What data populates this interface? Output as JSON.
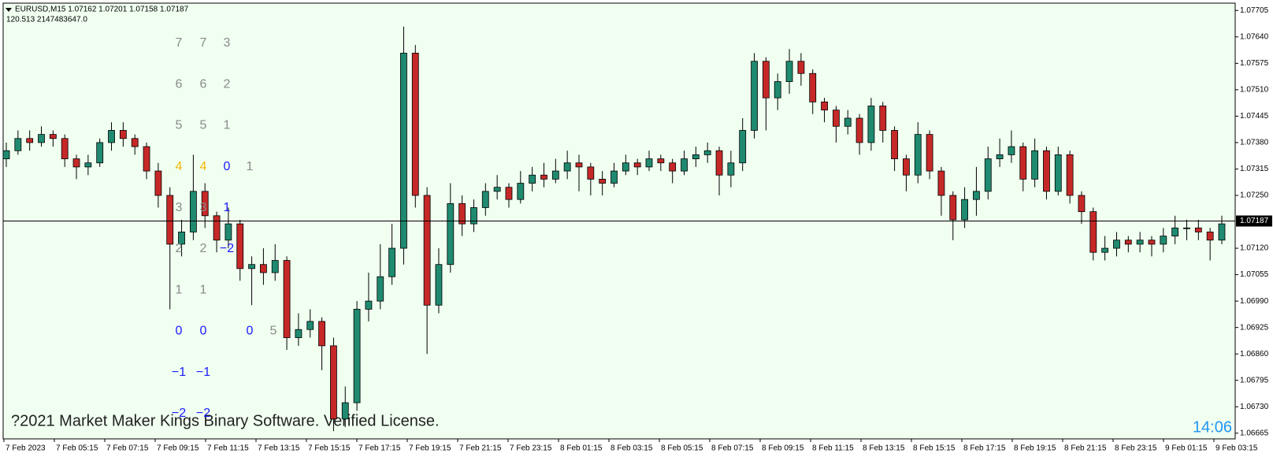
{
  "chart_data": {
    "type": "candlestick",
    "symbol_line": "EURUSD,M15  1.07162 1.07201 1.07158 1.07187",
    "info_line": "120.513  2147483647.0",
    "open": [
      1.0734,
      1.0736,
      1.0739,
      1.0738,
      1.074,
      1.0739,
      1.0734,
      1.0732,
      1.0733,
      1.0738,
      1.0741,
      1.0739,
      1.0737,
      1.0731,
      1.0725,
      1.0713,
      1.0716,
      1.0726,
      1.072,
      1.0714,
      1.0718,
      1.0707,
      1.0708,
      1.0706,
      1.0709,
      1.069,
      1.0692,
      1.0694,
      1.0688,
      1.067,
      1.0674,
      1.0697,
      1.0699,
      1.0705,
      1.0712,
      1.076,
      1.0725,
      1.0698,
      1.0708,
      1.0723,
      1.0718,
      1.0722,
      1.0726,
      1.0727,
      1.0724,
      1.0728,
      1.073,
      1.0729,
      1.0731,
      1.0733,
      1.0732,
      1.0729,
      1.0728,
      1.0731,
      1.0733,
      1.0732,
      1.0734,
      1.0733,
      1.0731,
      1.0734,
      1.0735,
      1.0736,
      1.073,
      1.0733,
      1.0741,
      1.0758,
      1.0749,
      1.0753,
      1.0758,
      1.0755,
      1.0748,
      1.0746,
      1.0742,
      1.0744,
      1.0738,
      1.0747,
      1.0741,
      1.0734,
      1.073,
      1.074,
      1.0731,
      1.0725,
      1.0719,
      1.0724,
      1.0726,
      1.0734,
      1.0735,
      1.0737,
      1.0729,
      1.0736,
      1.0726,
      1.0735,
      1.0725,
      1.0721,
      1.0711,
      1.0712,
      1.0714,
      1.0713,
      1.0714,
      1.0713,
      1.0715,
      1.0717,
      1.0717,
      1.0716,
      1.0714
    ],
    "high": [
      1.0738,
      1.0741,
      1.0741,
      1.0742,
      1.0741,
      1.074,
      1.0735,
      1.0735,
      1.0739,
      1.0743,
      1.0743,
      1.074,
      1.0738,
      1.0733,
      1.0727,
      1.0719,
      1.0735,
      1.0728,
      1.0721,
      1.0722,
      1.0719,
      1.071,
      1.0712,
      1.0713,
      1.071,
      1.0696,
      1.0697,
      1.0695,
      1.069,
      1.0678,
      1.0699,
      1.0706,
      1.0713,
      1.0718,
      1.07665,
      1.0762,
      1.0727,
      1.0712,
      1.0728,
      1.0725,
      1.0724,
      1.0728,
      1.073,
      1.0728,
      1.0731,
      1.0732,
      1.0733,
      1.0734,
      1.0736,
      1.0735,
      1.0733,
      1.0731,
      1.0733,
      1.0735,
      1.0734,
      1.0736,
      1.0735,
      1.0734,
      1.0736,
      1.0737,
      1.0738,
      1.0737,
      1.0736,
      1.0744,
      1.076,
      1.0759,
      1.0755,
      1.0761,
      1.076,
      1.0756,
      1.0749,
      1.0747,
      1.0746,
      1.0745,
      1.0749,
      1.0748,
      1.0742,
      1.0735,
      1.0743,
      1.0741,
      1.0732,
      1.0726,
      1.0727,
      1.0732,
      1.0737,
      1.0739,
      1.0741,
      1.0738,
      1.0739,
      1.0737,
      1.0737,
      1.0736,
      1.0726,
      1.0722,
      1.0715,
      1.0716,
      1.0715,
      1.0716,
      1.0715,
      1.0717,
      1.072,
      1.0719,
      1.0719,
      1.0717,
      1.072
    ],
    "low": [
      1.0732,
      1.0735,
      1.0736,
      1.0737,
      1.0737,
      1.0732,
      1.0729,
      1.073,
      1.0732,
      1.0736,
      1.0737,
      1.0735,
      1.0729,
      1.0722,
      1.0697,
      1.071,
      1.0714,
      1.0717,
      1.0711,
      1.0712,
      1.0704,
      1.0698,
      1.0703,
      1.0704,
      1.0687,
      1.0688,
      1.069,
      1.0682,
      1.0667,
      1.0668,
      1.0672,
      1.0694,
      1.0697,
      1.0703,
      1.0708,
      1.0722,
      1.0686,
      1.0696,
      1.0706,
      1.0715,
      1.0716,
      1.072,
      1.0724,
      1.0722,
      1.0723,
      1.0726,
      1.0727,
      1.0728,
      1.0729,
      1.0726,
      1.0725,
      1.0725,
      1.0727,
      1.073,
      1.073,
      1.0731,
      1.0731,
      1.0728,
      1.073,
      1.0732,
      1.0733,
      1.0725,
      1.0727,
      1.0731,
      1.0739,
      1.0741,
      1.0746,
      1.075,
      1.0752,
      1.0745,
      1.0743,
      1.0738,
      1.074,
      1.0735,
      1.0736,
      1.0738,
      1.0731,
      1.0726,
      1.0728,
      1.0729,
      1.072,
      1.0714,
      1.0717,
      1.072,
      1.0724,
      1.0732,
      1.0733,
      1.0726,
      1.0727,
      1.0724,
      1.0725,
      1.0723,
      1.0718,
      1.0709,
      1.0709,
      1.071,
      1.0711,
      1.0711,
      1.071,
      1.0711,
      1.0713,
      1.0714,
      1.0714,
      1.0709,
      1.0713
    ],
    "close": [
      1.0736,
      1.0739,
      1.0738,
      1.074,
      1.0739,
      1.0734,
      1.0732,
      1.0733,
      1.0738,
      1.0741,
      1.0739,
      1.0737,
      1.0731,
      1.0725,
      1.0713,
      1.0716,
      1.0726,
      1.072,
      1.0714,
      1.0718,
      1.0707,
      1.0708,
      1.0706,
      1.0709,
      1.069,
      1.0692,
      1.0694,
      1.0688,
      1.067,
      1.0674,
      1.0697,
      1.0699,
      1.0705,
      1.0712,
      1.076,
      1.0725,
      1.0698,
      1.0708,
      1.0723,
      1.0718,
      1.0722,
      1.0726,
      1.0727,
      1.0724,
      1.0728,
      1.073,
      1.0729,
      1.0731,
      1.0733,
      1.0732,
      1.0729,
      1.0728,
      1.0731,
      1.0733,
      1.0732,
      1.0734,
      1.0733,
      1.0731,
      1.0734,
      1.0735,
      1.0736,
      1.073,
      1.0733,
      1.0741,
      1.0758,
      1.0749,
      1.0753,
      1.0758,
      1.0755,
      1.0748,
      1.0746,
      1.0742,
      1.0744,
      1.0738,
      1.0747,
      1.0741,
      1.0734,
      1.073,
      1.074,
      1.0731,
      1.0725,
      1.0719,
      1.0724,
      1.0726,
      1.0734,
      1.0735,
      1.0737,
      1.0729,
      1.0736,
      1.0726,
      1.0735,
      1.0725,
      1.0721,
      1.0711,
      1.0712,
      1.0714,
      1.0713,
      1.0714,
      1.0713,
      1.0715,
      1.0717,
      1.0717,
      1.0716,
      1.0714,
      1.0718
    ],
    "up_color": "#1f8a70",
    "down_color": "#c62828",
    "x_labels": [
      "7 Feb 2023",
      "7 Feb 05:15",
      "7 Feb 07:15",
      "7 Feb 09:15",
      "7 Feb 11:15",
      "7 Feb 13:15",
      "7 Feb 15:15",
      "7 Feb 17:15",
      "7 Feb 19:15",
      "7 Feb 21:15",
      "7 Feb 23:15",
      "8 Feb 01:15",
      "8 Feb 03:15",
      "8 Feb 05:15",
      "8 Feb 07:15",
      "8 Feb 09:15",
      "8 Feb 11:15",
      "8 Feb 13:15",
      "8 Feb 15:15",
      "8 Feb 17:15",
      "8 Feb 19:15",
      "8 Feb 21:15",
      "8 Feb 23:15",
      "9 Feb 01:15",
      "9 Feb 03:15"
    ],
    "ylim": [
      1.06651,
      1.07723
    ],
    "yticks": [
      1.07705,
      {
        "value": 1.0764,
        "label": "1.07640"
      },
      1.07575,
      {
        "value": 1.0751,
        "label": "1.07510"
      },
      1.07445,
      {
        "value": 1.0738,
        "label": "1.07380"
      },
      1.07315,
      {
        "value": 1.0725,
        "label": "1.07250"
      },
      {
        "value": 1.0712,
        "label": "1.07120"
      },
      1.07055,
      {
        "value": 1.0699,
        "label": "1.06990"
      },
      1.06925,
      {
        "value": 1.0686,
        "label": "1.06860"
      },
      1.06795,
      {
        "value": 1.0673,
        "label": "1.06730"
      },
      1.06665
    ],
    "current_price": 1.07187,
    "indicator_grid": [
      [
        {
          "text": "7",
          "color": "#8a8a8a"
        },
        {
          "text": "7",
          "color": "#8a8a8a"
        },
        {
          "text": "3",
          "color": "#8a8a8a"
        },
        null,
        null
      ],
      [
        {
          "text": "6",
          "color": "#8a8a8a"
        },
        {
          "text": "6",
          "color": "#8a8a8a"
        },
        {
          "text": "2",
          "color": "#8a8a8a"
        },
        null,
        null
      ],
      [
        {
          "text": "5",
          "color": "#8a8a8a"
        },
        {
          "text": "5",
          "color": "#8a8a8a"
        },
        {
          "text": "1",
          "color": "#8a8a8a"
        },
        null,
        null
      ],
      [
        {
          "text": "4",
          "color": "#f2b705"
        },
        {
          "text": "4",
          "color": "#f2b705"
        },
        {
          "text": "0",
          "color": "#1a1aff"
        },
        {
          "text": "1",
          "color": "#8a8a8a"
        },
        null
      ],
      [
        {
          "text": "3",
          "color": "#8a8a8a"
        },
        {
          "text": "3",
          "color": "#8a8a8a"
        },
        {
          "text": "1",
          "color": "#1a1aff"
        },
        null,
        null
      ],
      [
        {
          "text": "2",
          "color": "#8a8a8a"
        },
        {
          "text": "2",
          "color": "#8a8a8a"
        },
        {
          "text": "−2",
          "color": "#1a1aff"
        },
        null,
        null
      ],
      [
        {
          "text": "1",
          "color": "#8a8a8a"
        },
        {
          "text": "1",
          "color": "#8a8a8a"
        },
        null,
        null,
        null
      ],
      [
        {
          "text": "0",
          "color": "#1a1aff"
        },
        {
          "text": "0",
          "color": "#1a1aff"
        },
        null,
        {
          "text": "0",
          "color": "#1a1aff"
        },
        {
          "text": "5",
          "color": "#8a8a8a"
        }
      ],
      [
        {
          "text": "−1",
          "color": "#1a1aff"
        },
        {
          "text": "−1",
          "color": "#1a1aff"
        },
        null,
        null,
        null
      ],
      [
        {
          "text": "−2",
          "color": "#1a1aff"
        },
        {
          "text": "−2",
          "color": "#1a1aff"
        },
        null,
        null,
        null
      ]
    ],
    "footer_text": "?2021 Market Maker Kings Binary Software. Verified License.",
    "clock": "14:06"
  }
}
